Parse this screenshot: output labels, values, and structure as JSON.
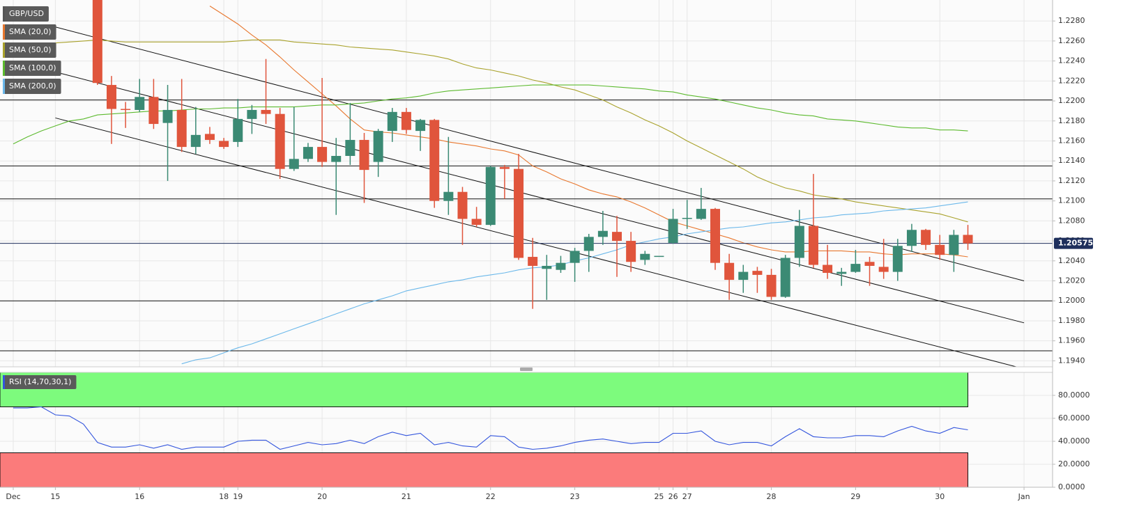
{
  "chart_data": [
    {
      "type": "candlestick",
      "name": "GBP/USD",
      "categories": [
        "Dec",
        null,
        null,
        "15",
        null,
        null,
        null,
        null,
        null,
        "16",
        null,
        null,
        null,
        null,
        null,
        "18",
        "19",
        null,
        null,
        null,
        null,
        null,
        "20",
        null,
        null,
        null,
        null,
        null,
        "21",
        null,
        null,
        null,
        null,
        null,
        "22",
        null,
        null,
        null,
        null,
        null,
        "23",
        null,
        null,
        null,
        null,
        null,
        "25",
        "26",
        "27",
        null,
        null,
        null,
        null,
        null,
        "28",
        null,
        null,
        null,
        null,
        null,
        "29",
        null,
        null,
        null,
        null,
        null,
        "30",
        null,
        null,
        null,
        null,
        null,
        "Jan"
      ],
      "open": [
        null,
        null,
        null,
        null,
        null,
        null,
        1.2305,
        1.2216,
        1.2192,
        1.2191,
        1.2204,
        1.2178,
        1.2191,
        1.2154,
        1.2167,
        1.216,
        1.2159,
        1.2182,
        1.2191,
        1.2187,
        1.2132,
        1.2142,
        1.2154,
        1.2139,
        1.2145,
        1.2161,
        1.2139,
        1.217,
        1.2189,
        1.217,
        1.2181,
        1.21,
        1.2109,
        1.2082,
        1.2076,
        1.2134,
        1.2132,
        1.2044,
        1.2032,
        1.2031,
        1.2038,
        1.205,
        1.2064,
        1.2069,
        1.206,
        1.2041,
        1.2045,
        1.2058,
        1.2082,
        1.2082,
        1.2092,
        1.2038,
        1.2021,
        1.203,
        1.2026,
        1.2004,
        1.2043,
        1.2075,
        1.2036,
        1.2027,
        1.2029,
        1.2039,
        1.2034,
        1.2029,
        1.2055,
        1.2071,
        1.2056,
        1.2046,
        1.2066,
        null,
        null,
        null,
        null
      ],
      "high": [
        null,
        null,
        null,
        null,
        null,
        null,
        1.231,
        1.2225,
        1.2199,
        1.2222,
        1.2222,
        1.2216,
        1.2222,
        1.2194,
        1.2174,
        1.2163,
        1.2202,
        1.2196,
        1.2242,
        1.2193,
        1.2194,
        1.2158,
        1.2223,
        1.2163,
        1.2198,
        1.2168,
        1.2172,
        1.2193,
        1.2193,
        1.2182,
        1.2182,
        1.2164,
        1.2114,
        1.2094,
        1.2135,
        1.2136,
        1.2147,
        1.2063,
        1.2046,
        1.2045,
        1.2053,
        1.2067,
        1.209,
        1.2085,
        1.2069,
        1.205,
        1.2045,
        1.2092,
        1.2101,
        1.2113,
        1.2093,
        1.2047,
        1.2036,
        1.2034,
        1.2032,
        1.2046,
        1.2091,
        1.2127,
        1.2056,
        1.2033,
        1.2051,
        1.2044,
        1.2062,
        1.2062,
        1.2077,
        1.2072,
        1.2066,
        1.2071,
        1.2076,
        null,
        null,
        null,
        null
      ],
      "low": [
        null,
        null,
        null,
        null,
        null,
        null,
        1.2216,
        1.2157,
        1.2173,
        1.2189,
        1.2172,
        1.212,
        1.2149,
        1.2147,
        1.2157,
        1.2152,
        1.2154,
        1.2167,
        1.2177,
        1.2122,
        1.213,
        1.2139,
        1.2134,
        1.2086,
        1.2136,
        1.2098,
        1.2124,
        1.2159,
        1.2167,
        1.215,
        1.2093,
        1.2086,
        1.2056,
        1.2074,
        1.2075,
        1.2102,
        1.2041,
        1.1992,
        1.2001,
        1.2028,
        1.2019,
        1.2029,
        1.2056,
        1.2024,
        1.2029,
        1.2036,
        1.2045,
        1.2057,
        1.2072,
        1.2081,
        1.2031,
        1.2001,
        1.2008,
        1.2008,
        1.2001,
        1.2003,
        1.2034,
        1.2033,
        1.2022,
        1.2015,
        1.2028,
        1.2015,
        1.2022,
        1.202,
        1.2049,
        1.2051,
        1.2041,
        1.2029,
        1.2051,
        null,
        null,
        null,
        null
      ],
      "close": [
        null,
        null,
        null,
        null,
        null,
        null,
        1.2218,
        1.2192,
        1.2191,
        1.2204,
        1.2177,
        1.2191,
        1.2154,
        1.2166,
        1.2161,
        1.2154,
        1.2182,
        1.2191,
        1.2187,
        1.2132,
        1.2142,
        1.2154,
        1.2139,
        1.2145,
        1.2161,
        1.2131,
        1.217,
        1.2189,
        1.2171,
        1.2181,
        1.21,
        1.2109,
        1.2082,
        1.2076,
        1.2134,
        1.2132,
        1.2043,
        1.2035,
        1.2035,
        1.2038,
        1.205,
        1.2064,
        1.207,
        1.206,
        1.2039,
        1.2047,
        1.2045,
        1.2082,
        1.2083,
        1.2092,
        1.2038,
        1.2021,
        1.2029,
        1.2026,
        1.2004,
        1.2043,
        1.2075,
        1.2036,
        1.2028,
        1.2029,
        1.2037,
        1.2035,
        1.2029,
        1.2055,
        1.2071,
        1.2056,
        1.2046,
        1.2066,
        1.20575,
        null,
        null,
        null,
        null
      ],
      "up_color": "#3b8a74",
      "down_color": "#e0553c",
      "overlays": [
        {
          "name": "SMA (20,0)",
          "color": "#e8772e",
          "values": [
            null,
            null,
            null,
            null,
            null,
            null,
            null,
            null,
            null,
            null,
            null,
            null,
            null,
            null,
            1.2295,
            1.2286,
            1.2277,
            1.2266,
            1.2256,
            1.2244,
            1.2231,
            1.2219,
            1.2207,
            1.2195,
            1.2182,
            1.2171,
            1.2169,
            1.2168,
            1.2166,
            1.2164,
            1.2162,
            1.2159,
            1.2157,
            1.2155,
            1.2152,
            1.215,
            1.2146,
            1.2135,
            1.2129,
            1.2122,
            1.2117,
            1.2111,
            1.2107,
            1.2104,
            1.2099,
            1.2093,
            1.2086,
            1.2079,
            1.2075,
            1.2071,
            1.2067,
            1.2063,
            1.2058,
            1.2054,
            1.2051,
            1.2049,
            1.2049,
            1.205,
            1.205,
            1.205,
            1.2049,
            1.2049,
            1.2047,
            1.2046,
            1.2047,
            1.2047,
            1.2047,
            1.2046,
            1.2044,
            null,
            null,
            null,
            null
          ]
        },
        {
          "name": "SMA (50,0)",
          "color": "#a9a22c",
          "values": [
            1.2251,
            1.2254,
            1.2257,
            1.2258,
            1.2259,
            1.226,
            1.2261,
            1.226,
            1.2259,
            1.2259,
            1.2259,
            1.2259,
            1.2259,
            1.2259,
            1.2259,
            1.2259,
            1.226,
            1.2261,
            1.2261,
            1.2261,
            1.2259,
            1.2258,
            1.2257,
            1.2256,
            1.2254,
            1.2253,
            1.2252,
            1.2251,
            1.2249,
            1.2247,
            1.2245,
            1.2242,
            1.2237,
            1.2233,
            1.2231,
            1.2228,
            1.2225,
            1.2221,
            1.2218,
            1.2214,
            1.2211,
            1.2206,
            1.2201,
            1.2194,
            1.2188,
            1.2181,
            1.2175,
            1.2168,
            1.216,
            1.2153,
            1.2146,
            1.2139,
            1.2132,
            1.2124,
            1.2118,
            1.2113,
            1.211,
            1.2106,
            1.2104,
            1.2102,
            1.2099,
            1.2097,
            1.2095,
            1.2093,
            1.2091,
            1.2089,
            1.2087,
            1.2083,
            1.2079,
            null,
            null,
            null,
            null
          ]
        },
        {
          "name": "SMA (100,0)",
          "color": "#5cba2e",
          "values": [
            1.2157,
            1.2164,
            1.217,
            1.2175,
            1.218,
            1.2182,
            1.2186,
            1.2187,
            1.2188,
            1.2189,
            1.219,
            1.219,
            1.2191,
            1.2192,
            1.2192,
            1.2193,
            1.2193,
            1.2194,
            1.2194,
            1.2194,
            1.2194,
            1.2195,
            1.2196,
            1.2196,
            1.2197,
            1.2198,
            1.22,
            1.2202,
            1.2203,
            1.2205,
            1.2208,
            1.221,
            1.2211,
            1.2212,
            1.2213,
            1.2214,
            1.2215,
            1.2216,
            1.2216,
            1.2216,
            1.2216,
            1.2216,
            1.2215,
            1.2214,
            1.2213,
            1.2212,
            1.221,
            1.2209,
            1.2206,
            1.2204,
            1.2202,
            1.2199,
            1.2196,
            1.2193,
            1.2191,
            1.2188,
            1.2186,
            1.2185,
            1.2182,
            1.2181,
            1.218,
            1.2178,
            1.2176,
            1.2174,
            1.2173,
            1.2173,
            1.2171,
            1.2171,
            1.217,
            null,
            null,
            null,
            null
          ]
        },
        {
          "name": "SMA (200,0)",
          "color": "#6bb8ea",
          "values": [
            null,
            null,
            null,
            null,
            null,
            null,
            null,
            null,
            null,
            null,
            null,
            null,
            1.1937,
            1.1941,
            1.1943,
            1.1948,
            1.1953,
            1.1957,
            1.1962,
            1.1967,
            1.1972,
            1.1977,
            1.1982,
            1.1987,
            1.1992,
            1.1997,
            1.2001,
            1.2005,
            1.201,
            1.2013,
            1.2016,
            1.2019,
            1.2021,
            1.2024,
            1.2026,
            1.2028,
            1.2031,
            1.2033,
            1.2034,
            1.2036,
            1.204,
            1.2043,
            1.2047,
            1.2051,
            1.2056,
            1.2059,
            1.2062,
            1.2064,
            1.2067,
            1.2069,
            1.2071,
            1.2073,
            1.2074,
            1.2076,
            1.2078,
            1.2079,
            1.2081,
            1.2083,
            1.2084,
            1.2086,
            1.2087,
            1.2088,
            1.209,
            1.2091,
            1.2092,
            1.2093,
            1.2095,
            1.2097,
            1.2099,
            null,
            null,
            null,
            null
          ]
        }
      ],
      "hlines": [
        1.2201,
        1.2135,
        1.2102,
        1.2,
        1.195
      ],
      "trendlines": [
        {
          "from": [
            3,
            1.2274
          ],
          "to": [
            72,
            1.202
          ]
        },
        {
          "from": [
            3,
            1.2229
          ],
          "to": [
            72,
            1.1978
          ]
        },
        {
          "from": [
            3,
            1.2183
          ],
          "to": [
            72,
            1.1932
          ]
        }
      ],
      "last_price": 1.20575,
      "last_price_color": "#1e2f5c",
      "ylim": [
        1.1934,
        1.2301
      ],
      "yticks": [
        {
          "value": 1.228,
          "label": "1.2280"
        },
        {
          "value": 1.226,
          "label": "1.2260"
        },
        {
          "value": 1.224,
          "label": "1.2240"
        },
        {
          "value": 1.222,
          "label": "1.2220"
        },
        {
          "value": 1.22,
          "label": "1.2200"
        },
        {
          "value": 1.218,
          "label": "1.2180"
        },
        {
          "value": 1.216,
          "label": "1.2160"
        },
        {
          "value": 1.214,
          "label": "1.2140"
        },
        {
          "value": 1.212,
          "label": "1.2120"
        },
        {
          "value": 1.21,
          "label": "1.2100"
        },
        {
          "value": 1.208,
          "label": "1.2080"
        },
        {
          "value": 1.206,
          "label": "1.2060"
        },
        {
          "value": 1.204,
          "label": "1.2040"
        },
        {
          "value": 1.202,
          "label": "1.2020"
        },
        {
          "value": 1.2,
          "label": "1.2000"
        },
        {
          "value": 1.198,
          "label": "1.1980"
        },
        {
          "value": 1.196,
          "label": "1.1960"
        },
        {
          "value": 1.194,
          "label": "1.1940"
        }
      ],
      "grid": true
    },
    {
      "type": "line",
      "series": [
        {
          "name": "RSI (14,70,30,1)",
          "color": "#3355dd",
          "values": [
            69,
            69,
            70,
            63,
            62,
            55,
            39,
            35,
            35,
            37,
            34,
            37,
            33,
            35,
            35,
            35,
            40,
            41,
            41,
            33,
            36,
            39,
            37,
            38,
            41,
            38,
            44,
            48,
            45,
            47,
            37,
            39,
            36,
            35,
            45,
            44,
            35,
            33,
            34,
            36,
            39,
            41,
            42,
            40,
            38,
            39,
            39,
            47,
            47,
            49,
            40,
            37,
            39,
            39,
            36,
            44,
            51,
            44,
            43,
            43,
            45,
            45,
            44,
            49,
            53,
            49,
            47,
            52,
            50,
            null,
            null,
            null,
            null
          ]
        }
      ],
      "bands": [
        {
          "from": 70,
          "to": 100,
          "color": "#7dfb7d"
        },
        {
          "from": 0,
          "to": 30,
          "color": "#fb7b7b"
        }
      ],
      "ylim": [
        0,
        100
      ],
      "yticks": [
        {
          "value": 0,
          "label": "0.0000"
        },
        {
          "value": 20,
          "label": "20.0000"
        },
        {
          "value": 40,
          "label": "40.0000"
        },
        {
          "value": 60,
          "label": "60.0000"
        },
        {
          "value": 80,
          "label": "80.0000"
        }
      ],
      "grid": true
    }
  ]
}
